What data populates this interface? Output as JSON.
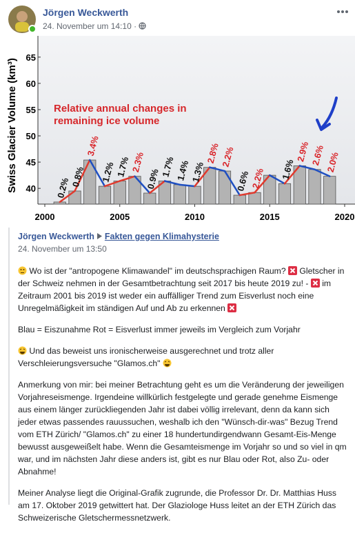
{
  "header": {
    "name": "Jörgen Weckwerth",
    "date": "24. November um 14:10 ·"
  },
  "chart_data": {
    "type": "bar",
    "y_label": "Swiss Glacier Volume (km³)",
    "x": [
      2001,
      2002,
      2003,
      2004,
      2005,
      2006,
      2007,
      2008,
      2009,
      2010,
      2011,
      2012,
      2013,
      2014,
      2015,
      2016,
      2017,
      2018,
      2019
    ],
    "values": [
      37.4,
      39.5,
      45.4,
      40.4,
      41.4,
      42.3,
      39.1,
      41.4,
      40.7,
      40.4,
      44.0,
      43.3,
      38.7,
      39.2,
      42.5,
      40.9,
      44.3,
      43.6,
      42.3
    ],
    "color": "#b3b3b3",
    "xlim": [
      2000,
      2020
    ],
    "xticks": [
      2000,
      2005,
      2010,
      2015,
      2020
    ],
    "ylim": [
      37,
      68
    ],
    "yticks": [
      40,
      45,
      50,
      55,
      60,
      65
    ],
    "up_color": "#e03a2e",
    "down_color": "#1f4fc1",
    "change_x": [
      2001,
      2002,
      2003,
      2004,
      2005,
      2006,
      2007,
      2008,
      2009,
      2010,
      2011,
      2012,
      2013,
      2014,
      2016,
      2017,
      2018,
      2019
    ],
    "change_labels": [
      "0.2%",
      "0.8%",
      "3.4%",
      "1.2%",
      "1.7%",
      "2.3%",
      "0.9%",
      "1.7%",
      "1.4%",
      "1.3%",
      "2.8%",
      "2.2%",
      "0.6%",
      "2.2%",
      "1.6%",
      "2.9%",
      "2.6%",
      "2.0%"
    ],
    "change_colors": [
      "#111",
      "#111",
      "#d9262b",
      "#111",
      "#111",
      "#d9262b",
      "#111",
      "#111",
      "#111",
      "#111",
      "#d9262b",
      "#d9262b",
      "#111",
      "#d9262b",
      "#111",
      "#d9262b",
      "#d9262b",
      "#d9262b"
    ],
    "annotation": [
      "Relative annual changes in",
      "remaining ice volume"
    ]
  },
  "shared": {
    "author": "Jörgen Weckwerth",
    "group": "Fakten gegen Klimahysterie",
    "date": "24. November um 13:50",
    "paragraphs": [
      [
        "Wo ist der \"antropogene Klimawandel\" im deutschsprachigen Raum?",
        "Gletscher in der Schweiz nehmen in der Gesamtbetrachtung seit 2017 bis heute 2019 zu! -",
        "im Zeitraum 2001 bis 2019 ist weder ein auffälliger Trend zum Eisverlust noch eine Unregelmäßigkeit im ständigen Auf und Ab zu erkennen"
      ],
      [
        "Blau = Eiszunahme Rot = Eisverlust immer jeweils im Vergleich zum Vorjahr"
      ],
      [
        "Und das beweist uns ironischerweise ausgerechnet und trotz aller Verschleierungsversuche \"Glamos.ch\""
      ],
      [
        "Anmerkung von mir: bei meiner Betrachtung geht es um die Veränderung der jeweiligen Vorjahreseismenge. Irgendeine willkürlich festgelegte und gerade genehme Eismenge aus einem länger zurückliegenden Jahr ist dabei völlig irrelevant, denn da kann sich jeder etwas passendes rauussuchen, weshalb ich den \"Wünsch-dir-was\" Bezug Trend vom ETH Zürich/ \"Glamos.ch\" zu einer 18 hundertundirgendwann Gesamt-Eis-Menge bewusst ausgeweißelt habe. Wenn die Gesamteismenge im Vorjahr so und so viel in qm war, und im nächsten Jahr diese anders ist, gibt es nur Blau oder Rot, also Zu- oder Abnahme!"
      ],
      [
        "Meiner Analyse liegt die Original-Grafik zugrunde, die Professor Dr. Dr. Matthias Huss am 17. Oktober 2019 getwittert hat. Der Glaziologe Huss leitet an der ETH Zürich das Schweizerische Gletschermessnetzwerk."
      ]
    ]
  }
}
